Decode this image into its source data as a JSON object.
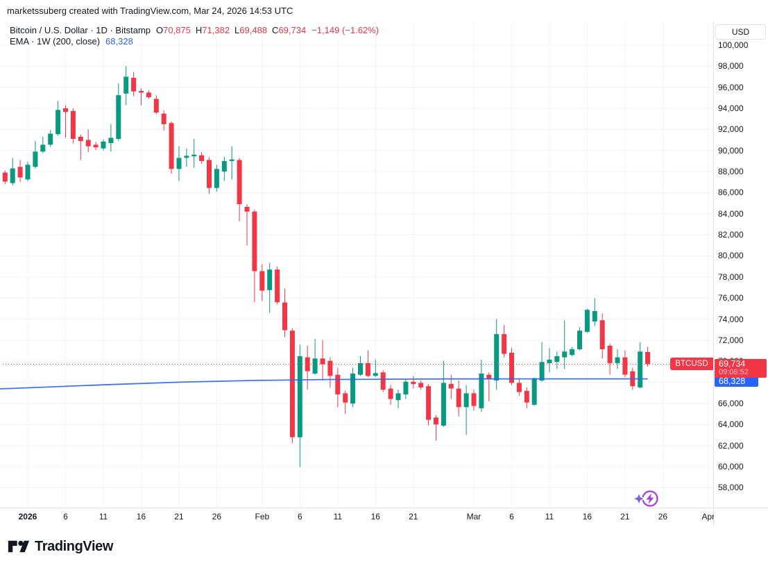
{
  "header": {
    "credit": "marketssuberg created with TradingView.com, Mar 24, 2026 14:53 UTC"
  },
  "legend": {
    "symbol_title": "Bitcoin / U.S. Dollar · 1D · Bitstamp",
    "ohlc": [
      {
        "label": "O",
        "value": "70,875"
      },
      {
        "label": "H",
        "value": "71,382"
      },
      {
        "label": "L",
        "value": "69,488"
      },
      {
        "label": "C",
        "value": "69,734"
      }
    ],
    "change": "−1,149 (−1.62%)",
    "ema_title": "EMA · 1W (200, close)",
    "ema_value": "68,328"
  },
  "price_axis": {
    "currency_button": "USD",
    "ticks": [
      {
        "label": "100,000",
        "value": 100000
      },
      {
        "label": "98,000",
        "value": 98000
      },
      {
        "label": "96,000",
        "value": 96000
      },
      {
        "label": "94,000",
        "value": 94000
      },
      {
        "label": "92,000",
        "value": 92000
      },
      {
        "label": "90,000",
        "value": 90000
      },
      {
        "label": "88,000",
        "value": 88000
      },
      {
        "label": "86,000",
        "value": 86000
      },
      {
        "label": "84,000",
        "value": 84000
      },
      {
        "label": "82,000",
        "value": 82000
      },
      {
        "label": "80,000",
        "value": 80000
      },
      {
        "label": "78,000",
        "value": 78000
      },
      {
        "label": "76,000",
        "value": 76000
      },
      {
        "label": "74,000",
        "value": 74000
      },
      {
        "label": "72,000",
        "value": 72000
      },
      {
        "label": "70,000",
        "value": 70000
      },
      {
        "label": "68,000",
        "value": 68000
      },
      {
        "label": "66,000",
        "value": 66000
      },
      {
        "label": "64,000",
        "value": 64000
      },
      {
        "label": "62,000",
        "value": 62000
      },
      {
        "label": "60,000",
        "value": 60000
      },
      {
        "label": "58,000",
        "value": 58000
      }
    ],
    "last_price": {
      "value": "69,734",
      "countdown": "09:06:52"
    },
    "ema_label": "68,328",
    "symbol_tag": "BTCUSD"
  },
  "time_axis": {
    "ticks": [
      {
        "label": "2026",
        "day": 0,
        "bold": true
      },
      {
        "label": "6",
        "day": 5
      },
      {
        "label": "11",
        "day": 10
      },
      {
        "label": "16",
        "day": 15
      },
      {
        "label": "21",
        "day": 20
      },
      {
        "label": "26",
        "day": 25
      },
      {
        "label": "Feb",
        "day": 31
      },
      {
        "label": "6",
        "day": 36
      },
      {
        "label": "11",
        "day": 41
      },
      {
        "label": "16",
        "day": 46
      },
      {
        "label": "21",
        "day": 51
      },
      {
        "label": "Mar",
        "day": 59
      },
      {
        "label": "6",
        "day": 64
      },
      {
        "label": "11",
        "day": 69
      },
      {
        "label": "16",
        "day": 74
      },
      {
        "label": "21",
        "day": 79
      },
      {
        "label": "26",
        "day": 84
      },
      {
        "label": "Apr",
        "day": 90
      }
    ]
  },
  "footer": {
    "brand": "TradingView"
  },
  "chart_data": {
    "type": "candlestick",
    "title": "Bitcoin / U.S. Dollar",
    "symbol": "BTCUSD",
    "interval": "1D",
    "exchange": "Bitstamp",
    "ohlc_current": {
      "open": 70875,
      "high": 71382,
      "low": 69488,
      "close": 69734,
      "change": -1149,
      "change_pct": -1.62
    },
    "price_line": 69734,
    "ylim": [
      56112,
      102174
    ],
    "xlim": [
      -3.67,
      90.66
    ],
    "grid": true,
    "first_day": -3,
    "candles_format": [
      "open",
      "high",
      "low",
      "close"
    ],
    "candles": [
      [
        87900,
        88100,
        86800,
        87050
      ],
      [
        86900,
        89300,
        86700,
        88300
      ],
      [
        88450,
        89100,
        87000,
        87450
      ],
      [
        87250,
        88950,
        87100,
        88650
      ],
      [
        88450,
        90900,
        88300,
        89900
      ],
      [
        89900,
        91300,
        89750,
        90550
      ],
      [
        90550,
        91950,
        90350,
        91600
      ],
      [
        91550,
        94700,
        91400,
        93850
      ],
      [
        94000,
        94300,
        91200,
        93650
      ],
      [
        93750,
        94000,
        90650,
        91100
      ],
      [
        91300,
        91500,
        89100,
        90900
      ],
      [
        91000,
        92000,
        89850,
        90400
      ],
      [
        90550,
        90800,
        90050,
        90300
      ],
      [
        90200,
        91050,
        90000,
        90850
      ],
      [
        90700,
        92500,
        89900,
        91200
      ],
      [
        91100,
        96350,
        90900,
        95250
      ],
      [
        95400,
        98000,
        94300,
        97000
      ],
      [
        96900,
        97450,
        95150,
        95600
      ],
      [
        95650,
        95900,
        94300,
        95500
      ],
      [
        95500,
        95700,
        94900,
        95050
      ],
      [
        94900,
        95250,
        93450,
        93600
      ],
      [
        93500,
        93800,
        91900,
        92500
      ],
      [
        92600,
        92750,
        87800,
        88250
      ],
      [
        88250,
        90400,
        87100,
        89300
      ],
      [
        89300,
        90200,
        88450,
        89500
      ],
      [
        89450,
        91100,
        88350,
        89600
      ],
      [
        89550,
        89850,
        88750,
        89000
      ],
      [
        89100,
        89350,
        85900,
        86450
      ],
      [
        86450,
        88650,
        86100,
        88250
      ],
      [
        88000,
        89400,
        87100,
        89000
      ],
      [
        89000,
        90400,
        87250,
        89150
      ],
      [
        89100,
        89300,
        83300,
        84900
      ],
      [
        84650,
        84900,
        81000,
        84200
      ],
      [
        84200,
        84400,
        75600,
        78550
      ],
      [
        78550,
        79200,
        75700,
        76700
      ],
      [
        76750,
        79350,
        74600,
        78700
      ],
      [
        78700,
        79000,
        75400,
        75600
      ],
      [
        75580,
        76900,
        72300,
        72950
      ],
      [
        72900,
        73130,
        62240,
        62790
      ],
      [
        62790,
        71570,
        59950,
        70480
      ],
      [
        70370,
        71470,
        67300,
        69050
      ],
      [
        68830,
        72130,
        68720,
        70260
      ],
      [
        70260,
        72020,
        68170,
        69710
      ],
      [
        70040,
        70370,
        67500,
        68610
      ],
      [
        68720,
        69380,
        65650,
        66850
      ],
      [
        66960,
        67200,
        64990,
        66080
      ],
      [
        65980,
        69380,
        65650,
        68830
      ],
      [
        68720,
        70480,
        68610,
        69820
      ],
      [
        69820,
        71030,
        68500,
        68610
      ],
      [
        68620,
        70150,
        68500,
        68870
      ],
      [
        68940,
        69160,
        67080,
        67300
      ],
      [
        67410,
        67740,
        65870,
        66420
      ],
      [
        66310,
        67300,
        65540,
        66960
      ],
      [
        66850,
        68280,
        66420,
        68060
      ],
      [
        68060,
        68610,
        67410,
        67840
      ],
      [
        67950,
        68170,
        67300,
        67520
      ],
      [
        67630,
        67840,
        63890,
        64440
      ],
      [
        64660,
        64880,
        62460,
        64000
      ],
      [
        63890,
        70040,
        63780,
        67950
      ],
      [
        67840,
        68720,
        66420,
        67410
      ],
      [
        67410,
        68170,
        64770,
        65650
      ],
      [
        65650,
        67740,
        63010,
        66960
      ],
      [
        66960,
        67300,
        65320,
        65760
      ],
      [
        65540,
        70150,
        65210,
        68830
      ],
      [
        68720,
        68940,
        66190,
        68280
      ],
      [
        68170,
        74000,
        67300,
        72570
      ],
      [
        72570,
        73450,
        70370,
        70700
      ],
      [
        70810,
        71250,
        67740,
        67950
      ],
      [
        67950,
        68280,
        66740,
        67080
      ],
      [
        67190,
        67520,
        65540,
        66080
      ],
      [
        65870,
        68450,
        65760,
        68390
      ],
      [
        68170,
        71800,
        68060,
        69930
      ],
      [
        69820,
        71250,
        68940,
        70150
      ],
      [
        69930,
        70920,
        69270,
        70480
      ],
      [
        70370,
        73890,
        69270,
        70920
      ],
      [
        70590,
        71360,
        70480,
        71140
      ],
      [
        71140,
        73230,
        71030,
        72900
      ],
      [
        72790,
        74990,
        72680,
        74880
      ],
      [
        73780,
        75980,
        73340,
        74770
      ],
      [
        73890,
        74550,
        70260,
        71140
      ],
      [
        71470,
        71690,
        68720,
        69820
      ],
      [
        69820,
        71140,
        69270,
        70370
      ],
      [
        70370,
        71030,
        68500,
        68720
      ],
      [
        69050,
        69380,
        67300,
        67630
      ],
      [
        67520,
        71800,
        67410,
        70920
      ],
      [
        70875,
        71382,
        69488,
        69734
      ]
    ],
    "ema": {
      "name": "EMA 200 1W",
      "value": 68328,
      "points": [
        [
          -3.7,
          67380
        ],
        [
          0,
          67480
        ],
        [
          10,
          67760
        ],
        [
          20,
          68010
        ],
        [
          30,
          68180
        ],
        [
          40,
          68270
        ],
        [
          55,
          68320
        ],
        [
          82,
          68328
        ]
      ]
    },
    "colors": {
      "up": "#089981",
      "down": "#F23645",
      "ema": "#2962FF",
      "price_line": "#F23645",
      "grid": "#F0F3FA",
      "spark_circle": "#A93AE0",
      "spark_star": "#7A5AF8"
    }
  }
}
